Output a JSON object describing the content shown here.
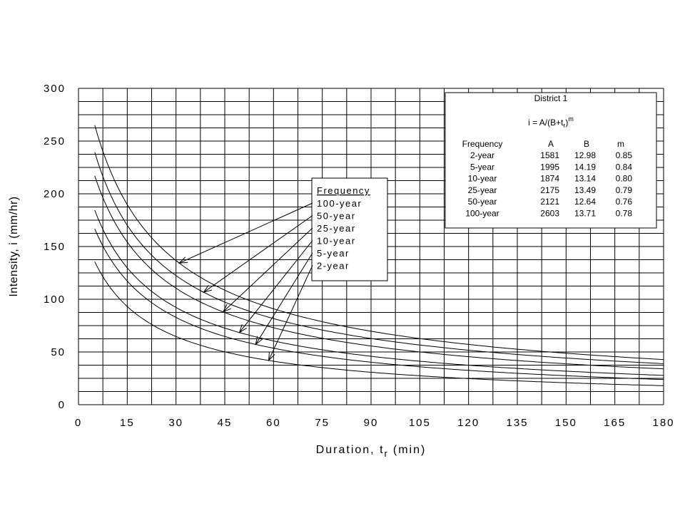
{
  "chart_data": {
    "type": "line",
    "xlabel": "Duration, t",
    "xlabel_sub": "r",
    "xlabel_unit": "(min)",
    "ylabel": "Intensity, i (mm/hr)",
    "xlim": [
      0,
      180
    ],
    "ylim": [
      0,
      300
    ],
    "x_ticks": [
      "0",
      "15",
      "30",
      "45",
      "60",
      "75",
      "90",
      "105",
      "120",
      "135",
      "150",
      "165",
      "180"
    ],
    "y_ticks": [
      "0",
      "50",
      "100",
      "150",
      "200",
      "250",
      "300"
    ],
    "grid": true,
    "legend": {
      "title": "Frequency",
      "position": "center",
      "entries": [
        "100-year",
        "50-year",
        "25-year",
        "10-year",
        "5-year",
        "2-year"
      ]
    },
    "series": [
      {
        "name": "100-year",
        "A": 2603,
        "B": 13.71,
        "m": 0.78,
        "x_range": [
          5,
          180
        ]
      },
      {
        "name": "50-year",
        "A": 2121,
        "B": 12.64,
        "m": 0.76,
        "x_range": [
          5,
          180
        ]
      },
      {
        "name": "25-year",
        "A": 2175,
        "B": 13.49,
        "m": 0.79,
        "x_range": [
          5,
          180
        ]
      },
      {
        "name": "10-year",
        "A": 1874,
        "B": 13.14,
        "m": 0.8,
        "x_range": [
          5,
          180
        ]
      },
      {
        "name": "5-year",
        "A": 1995,
        "B": 14.19,
        "m": 0.84,
        "x_range": [
          5,
          180
        ]
      },
      {
        "name": "2-year",
        "A": 1581,
        "B": 12.98,
        "m": 0.85,
        "x_range": [
          5,
          180
        ]
      }
    ],
    "table": {
      "title": "District 1",
      "formula": "i = A/(B+t",
      "formula_sub": "r",
      "formula_close": ")",
      "formula_sup": "m",
      "headers": [
        "Frequency",
        "A",
        "B",
        "m"
      ],
      "rows": [
        [
          "2-year",
          "1581",
          "12.98",
          "0.85"
        ],
        [
          "5-year",
          "1995",
          "14.19",
          "0.84"
        ],
        [
          "10-year",
          "1874",
          "13.14",
          "0.80"
        ],
        [
          "25-year",
          "2175",
          "13.49",
          "0.79"
        ],
        [
          "50-year",
          "2121",
          "12.64",
          "0.76"
        ],
        [
          "100-year",
          "2603",
          "13.71",
          "0.78"
        ]
      ]
    }
  }
}
